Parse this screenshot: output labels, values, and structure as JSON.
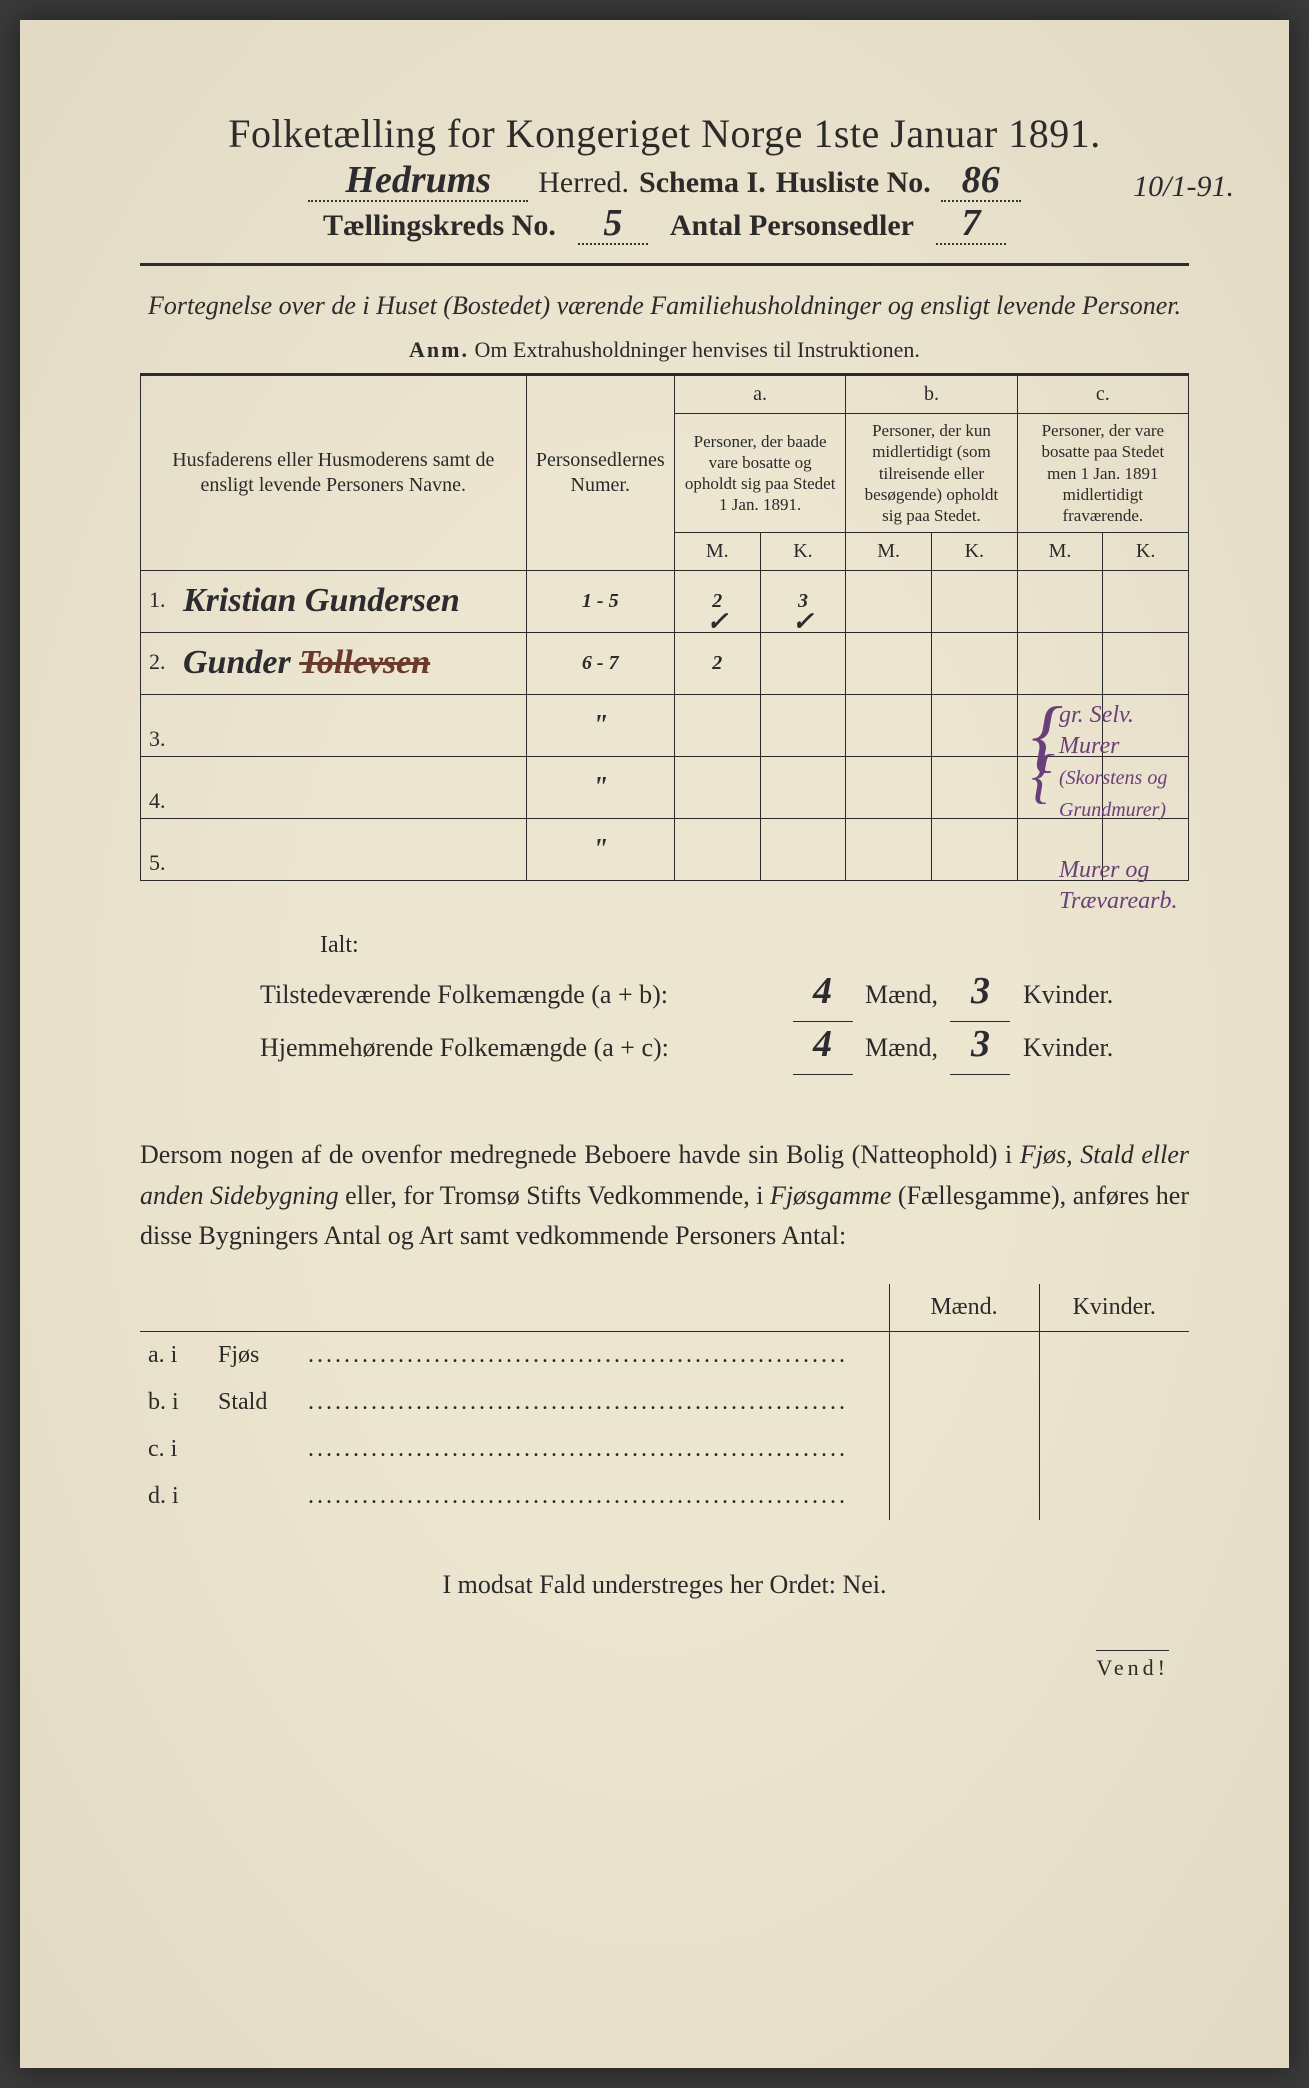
{
  "colors": {
    "paper": "#ece5d0",
    "ink": "#2a2a2a",
    "handwriting_dark": "#2b2b30",
    "handwriting_purple": "#6b3f7a",
    "handwriting_brown": "#6b3a2e"
  },
  "title": "Folketælling for Kongeriget Norge 1ste Januar 1891.",
  "header": {
    "herred_value": "Hedrums",
    "herred_label": "Herred.",
    "schema_label": "Schema I.",
    "husliste_label": "Husliste No.",
    "husliste_no": "86",
    "margin_date": "10/1-91.",
    "kreds_label": "Tællingskreds No.",
    "kreds_no": "5",
    "antal_label": "Antal Personsedler",
    "antal_value": "7"
  },
  "subtitle": "Fortegnelse over de i Huset (Bostedet) værende Familiehusholdninger og ensligt levende Personer.",
  "anm_label": "Anm.",
  "anm_text": "Om Extrahusholdninger henvises til Instruktionen.",
  "table": {
    "columns": {
      "names": "Husfaderens eller Husmoderens samt de ensligt levende Personers Navne.",
      "numer": "Personsedlernes Numer.",
      "a_label": "a.",
      "a_text": "Personer, der baade vare bosatte og opholdt sig paa Stedet 1 Jan. 1891.",
      "b_label": "b.",
      "b_text": "Personer, der kun midlertidigt (som tilreisende eller besøgende) opholdt sig paa Stedet.",
      "c_label": "c.",
      "c_text": "Personer, der vare bosatte paa Stedet men 1 Jan. 1891 midlertidigt fraværende.",
      "m": "M.",
      "k": "K."
    },
    "rows": [
      {
        "n": "1.",
        "name": "Kristian Gundersen",
        "numer": "1 - 5",
        "a_m": "2",
        "a_k": "3",
        "b_m": "",
        "b_k": "",
        "c_m": "",
        "c_k": ""
      },
      {
        "n": "2.",
        "name": "Gunder Tollevsen",
        "numer": "6 - 7",
        "a_m": "2",
        "a_k": "",
        "a_m_check": "✓",
        "a_k_check": "✓",
        "b_m": "",
        "b_k": "",
        "c_m": "",
        "c_k": ""
      },
      {
        "n": "3.",
        "name": "",
        "numer": "\"",
        "a_m": "",
        "a_k": "",
        "b_m": "",
        "b_k": "",
        "c_m": "",
        "c_k": ""
      },
      {
        "n": "4.",
        "name": "",
        "numer": "\"",
        "a_m": "",
        "a_k": "",
        "b_m": "",
        "b_k": "",
        "c_m": "",
        "c_k": ""
      },
      {
        "n": "5.",
        "name": "",
        "numer": "\"",
        "a_m": "",
        "a_k": "",
        "b_m": "",
        "b_k": "",
        "c_m": "",
        "c_k": ""
      }
    ],
    "margin_notes": {
      "line1": "gr. Selv.",
      "line2": "Murer",
      "line3": "(Skorstens og Grundmurer)",
      "line4": "Murer og",
      "line5": "Trævarearb."
    }
  },
  "ialt": {
    "heading": "Ialt:",
    "line1_label": "Tilstedeværende Folkemængde (a + b):",
    "line2_label": "Hjemmehørende Folkemængde (a + c):",
    "maend": "Mænd,",
    "kvinder": "Kvinder.",
    "v1_m": "4",
    "v1_k": "3",
    "v2_m": "4",
    "v2_k": "3"
  },
  "para": "Dersom nogen af de ovenfor medregnede Beboere havde sin Bolig (Natteophold) i Fjøs, Stald eller anden Sidebygning eller, for Tromsø Stifts Vedkommende, i Fjøsgamme (Fællesgamme), anføres her disse Bygningers Antal og Art samt vedkommende Personers Antal:",
  "lower_table": {
    "head_m": "Mænd.",
    "head_k": "Kvinder.",
    "rows": [
      {
        "l": "a.  i",
        "t": "Fjøs"
      },
      {
        "l": "b.  i",
        "t": "Stald"
      },
      {
        "l": "c.  i",
        "t": ""
      },
      {
        "l": "d.  i",
        "t": ""
      }
    ]
  },
  "nei_line": "I modsat Fald understreges her Ordet: Nei.",
  "vend": "Vend!"
}
